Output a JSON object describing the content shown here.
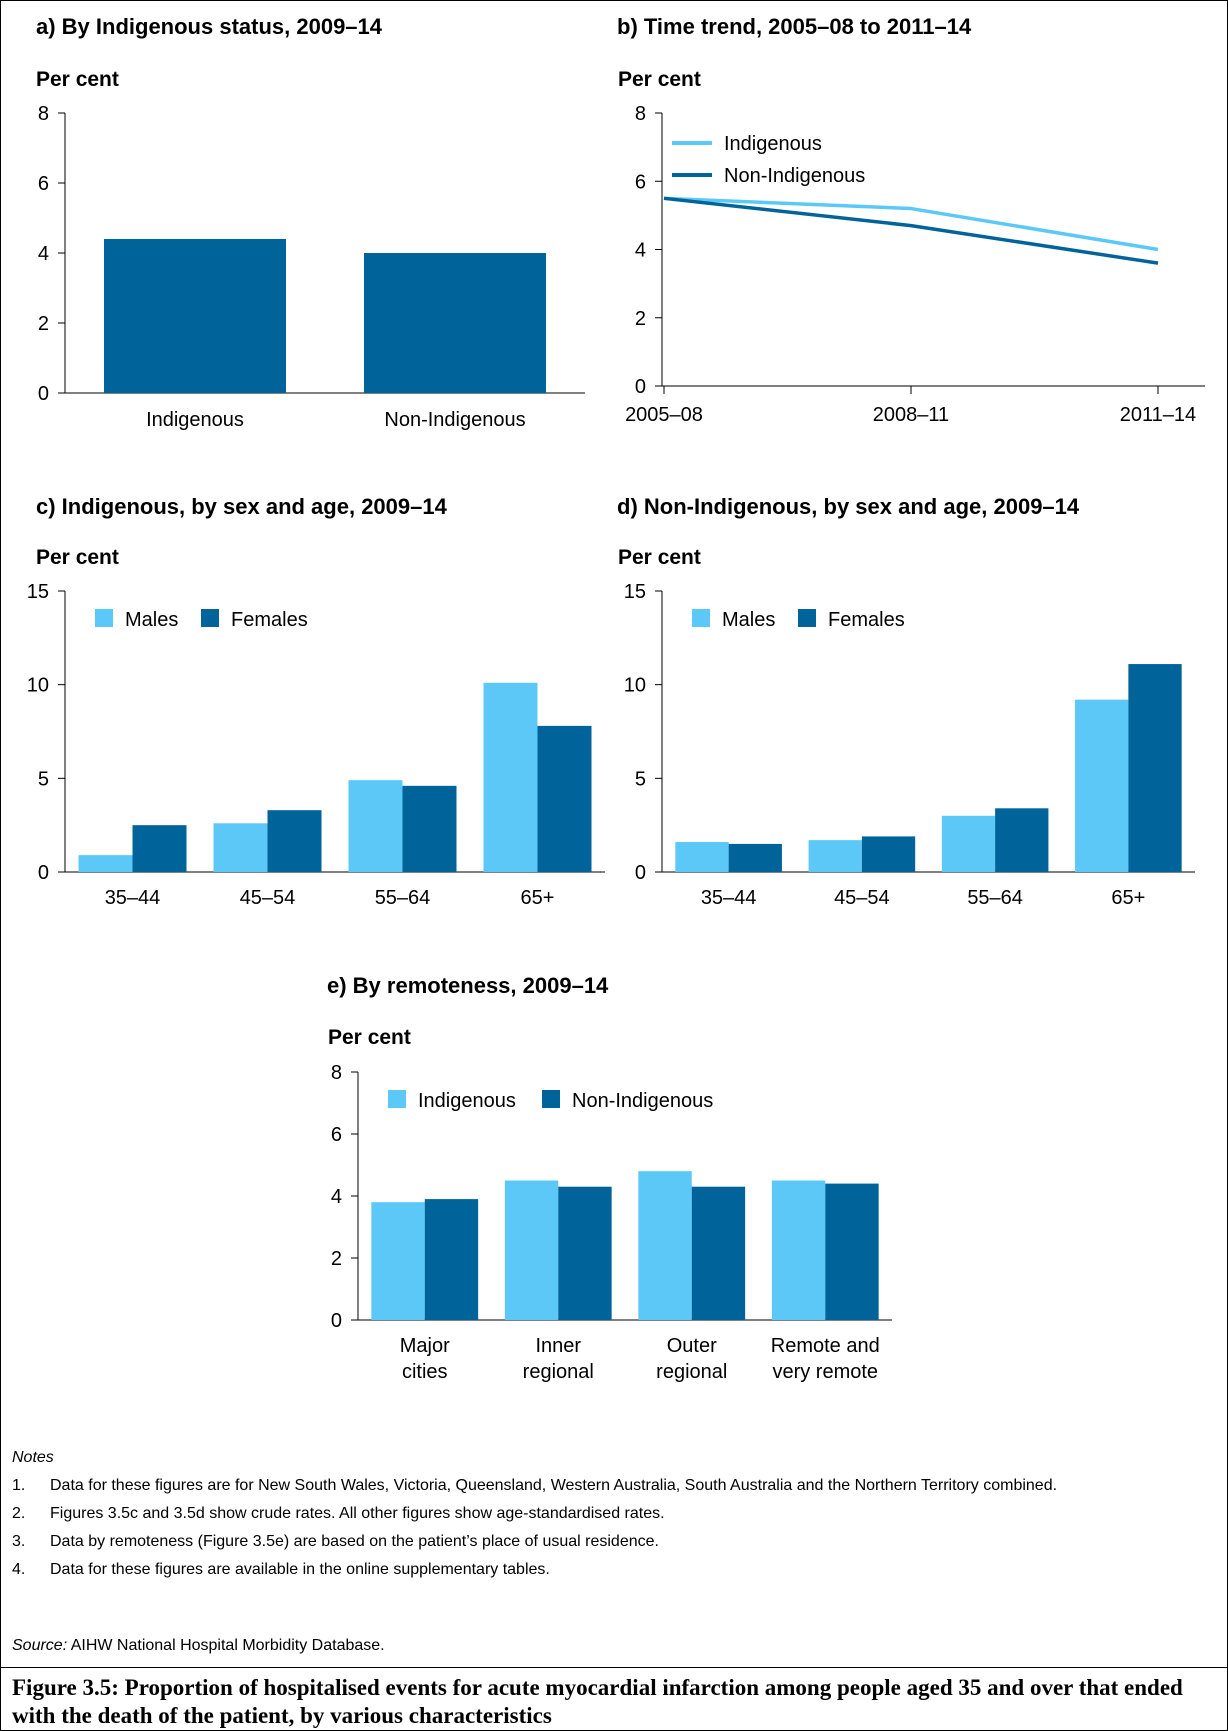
{
  "colors": {
    "indigenous": "#5cc8f8",
    "non_indigenous": "#00649a",
    "axis": "#000000"
  },
  "chart_data": [
    {
      "id": "a",
      "type": "bar",
      "title": "a) By Indigenous status, 2009–14",
      "ylabel": "Per cent",
      "ylim": [
        0,
        8
      ],
      "yticks": [
        "0",
        "2",
        "4",
        "6",
        "8"
      ],
      "categories": [
        "Indigenous",
        "Non-Indigenous"
      ],
      "values": [
        4.4,
        4.0
      ]
    },
    {
      "id": "b",
      "type": "line",
      "title": "b) Time trend, 2005–08 to 2011–14",
      "ylabel": "Per cent",
      "ylim": [
        0,
        8
      ],
      "yticks": [
        "0",
        "2",
        "4",
        "6",
        "8"
      ],
      "x": [
        "2005–08",
        "2008–11",
        "2011–14"
      ],
      "legend": "top-left",
      "series": [
        {
          "name": "Indigenous",
          "values": [
            5.5,
            5.2,
            4.0
          ]
        },
        {
          "name": "Non-Indigenous",
          "values": [
            5.5,
            4.7,
            3.6
          ]
        }
      ]
    },
    {
      "id": "c",
      "type": "bar",
      "title": "c) Indigenous, by sex and age, 2009–14",
      "ylabel": "Per cent",
      "ylim": [
        0,
        15
      ],
      "yticks": [
        "0",
        "5",
        "10",
        "15"
      ],
      "categories": [
        "35–44",
        "45–54",
        "55–64",
        "65+"
      ],
      "legend": "top-left",
      "series": [
        {
          "name": "Males",
          "values": [
            0.9,
            2.6,
            4.9,
            10.1
          ]
        },
        {
          "name": "Females",
          "values": [
            2.5,
            3.3,
            4.6,
            7.8
          ]
        }
      ]
    },
    {
      "id": "d",
      "type": "bar",
      "title": "d) Non-Indigenous, by sex and age, 2009–14",
      "ylabel": "Per cent",
      "ylim": [
        0,
        15
      ],
      "yticks": [
        "0",
        "5",
        "10",
        "15"
      ],
      "categories": [
        "35–44",
        "45–54",
        "55–64",
        "65+"
      ],
      "legend": "top-left",
      "series": [
        {
          "name": "Males",
          "values": [
            1.6,
            1.7,
            3.0,
            9.2
          ]
        },
        {
          "name": "Females",
          "values": [
            1.5,
            1.9,
            3.4,
            11.1
          ]
        }
      ]
    },
    {
      "id": "e",
      "type": "bar",
      "title": "e) By remoteness, 2009–14",
      "ylabel": "Per cent",
      "ylim": [
        0,
        8
      ],
      "yticks": [
        "0",
        "2",
        "4",
        "6",
        "8"
      ],
      "categories": [
        [
          "Major",
          "cities"
        ],
        [
          "Inner",
          "regional"
        ],
        [
          "Outer",
          "regional"
        ],
        [
          "Remote and",
          "very remote"
        ]
      ],
      "legend": "top-left",
      "series": [
        {
          "name": "Indigenous",
          "values": [
            3.8,
            4.5,
            4.8,
            4.5
          ]
        },
        {
          "name": "Non-Indigenous",
          "values": [
            3.9,
            4.3,
            4.3,
            4.4
          ]
        }
      ]
    }
  ],
  "notes": {
    "header": "Notes",
    "items": [
      {
        "num": "1.",
        "text": "Data for these figures are for New South Wales, Victoria, Queensland, Western Australia, South Australia and the Northern Territory combined."
      },
      {
        "num": "2.",
        "text": "Figures 3.5c and 3.5d show crude rates. All other figures show age-standardised rates."
      },
      {
        "num": "3.",
        "text": "Data by remoteness (Figure 3.5e) are based on the patient’s place of usual residence."
      },
      {
        "num": "4.",
        "text": "Data for these figures are available in the online supplementary tables."
      }
    ]
  },
  "source": {
    "label": "Source:",
    "text": " AIHW National Hospital Morbidity Database."
  },
  "caption": "Figure 3.5: Proportion of hospitalised events for acute myocardial infarction among people aged 35 and over that ended with the death of the patient, by various characteristics"
}
